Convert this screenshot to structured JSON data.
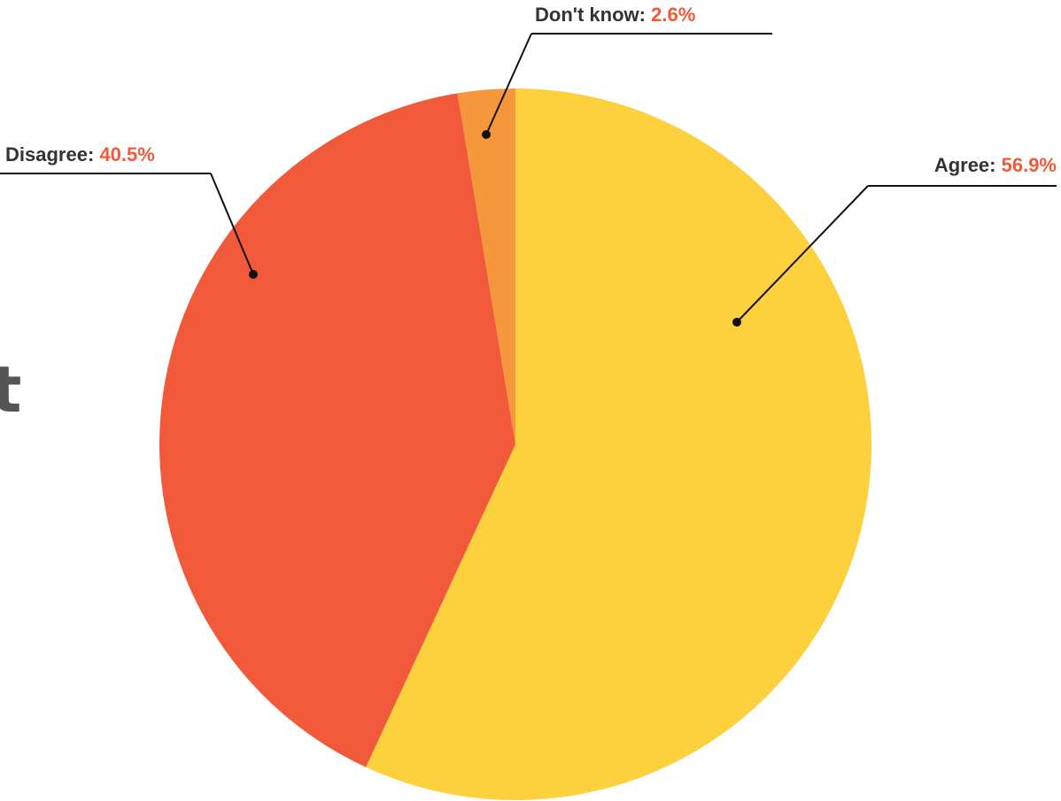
{
  "page": {
    "cut_off_text": "t"
  },
  "chart_data": {
    "type": "pie",
    "title": "",
    "start": "12 o'clock",
    "direction": "clockwise",
    "slices": [
      {
        "label": "Agree",
        "value": 56.9,
        "display": "56.9%",
        "color": "#fdd13d"
      },
      {
        "label": "Disagree",
        "value": 40.5,
        "display": "40.5%",
        "color": "#f05a3a"
      },
      {
        "label": "Don't know",
        "value": 2.6,
        "display": "2.6%",
        "color": "#f7973c"
      }
    ],
    "label_color": "#333333",
    "value_color": "#f05a3a",
    "leader_line_color": "#111111",
    "legend": "none"
  }
}
